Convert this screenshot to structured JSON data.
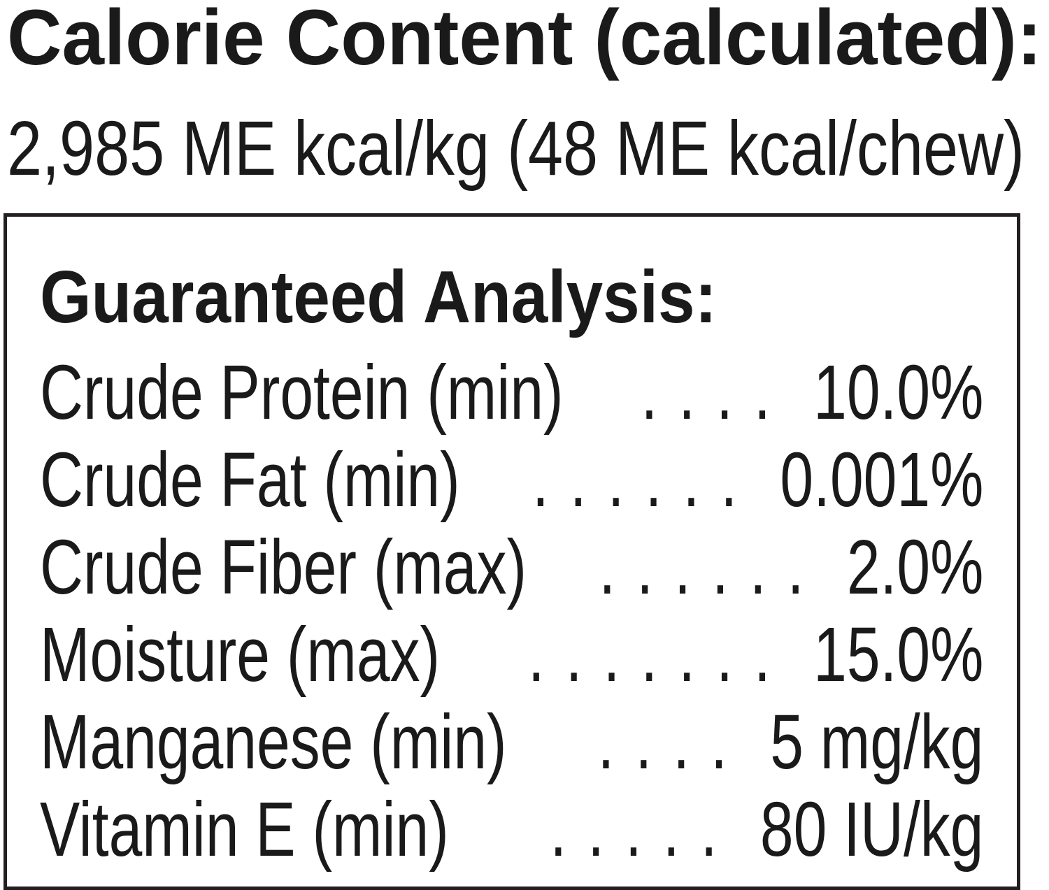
{
  "calorie": {
    "heading": "Calorie Content (calculated):",
    "value": "2,985 ME kcal/kg (48 ME kcal/chew)"
  },
  "analysis": {
    "heading": "Guaranteed Analysis:",
    "rows": [
      {
        "label": "Crude Protein (min)",
        "dots": "....",
        "value": "10.0%"
      },
      {
        "label": "Crude Fat (min)",
        "dots": "......",
        "value": "0.001%"
      },
      {
        "label": "Crude Fiber (max)",
        "dots": "......",
        "value": "2.0%"
      },
      {
        "label": "Moisture (max)",
        "dots": ".......",
        "value": "15.0%"
      },
      {
        "label": "Manganese (min)",
        "dots": "....",
        "value": "5 mg/kg"
      },
      {
        "label": "Vitamin E (min)",
        "dots": ".....",
        "value": "80 IU/kg"
      }
    ]
  }
}
